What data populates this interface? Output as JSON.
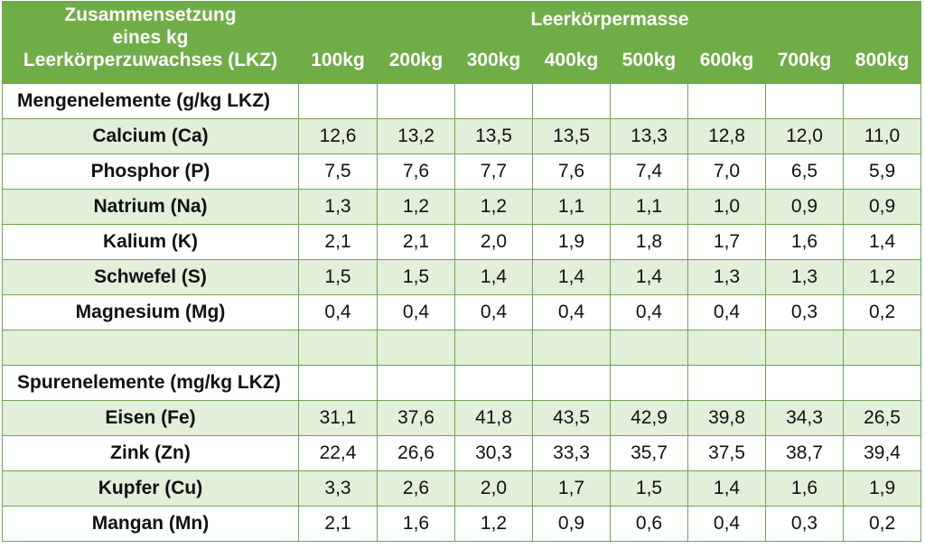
{
  "header": {
    "left_lines": [
      "Zusammensetzung",
      "eines kg",
      "Leerkörperzuwachses (LKZ)"
    ],
    "group": "Leerkörpermasse",
    "columns": [
      "100kg",
      "200kg",
      "300kg",
      "400kg",
      "500kg",
      "600kg",
      "700kg",
      "800kg"
    ]
  },
  "sections": [
    {
      "title": "Mengenelemente (g/kg LKZ)",
      "rows": [
        {
          "label": "Calcium (Ca)",
          "values": [
            "12,6",
            "13,2",
            "13,5",
            "13,5",
            "13,3",
            "12,8",
            "12,0",
            "11,0"
          ]
        },
        {
          "label": "Phosphor (P)",
          "values": [
            "7,5",
            "7,6",
            "7,7",
            "7,6",
            "7,4",
            "7,0",
            "6,5",
            "5,9"
          ]
        },
        {
          "label": "Natrium (Na)",
          "values": [
            "1,3",
            "1,2",
            "1,2",
            "1,1",
            "1,1",
            "1,0",
            "0,9",
            "0,9"
          ]
        },
        {
          "label": "Kalium (K)",
          "values": [
            "2,1",
            "2,1",
            "2,0",
            "1,9",
            "1,8",
            "1,7",
            "1,6",
            "1,4"
          ]
        },
        {
          "label": "Schwefel (S)",
          "values": [
            "1,5",
            "1,5",
            "1,4",
            "1,4",
            "1,4",
            "1,3",
            "1,3",
            "1,2"
          ]
        },
        {
          "label": "Magnesium (Mg)",
          "values": [
            "0,4",
            "0,4",
            "0,4",
            "0,4",
            "0,4",
            "0,4",
            "0,3",
            "0,2"
          ]
        }
      ]
    },
    {
      "title": "Spurenelemente (mg/kg LKZ)",
      "rows": [
        {
          "label": "Eisen (Fe)",
          "values": [
            "31,1",
            "37,6",
            "41,8",
            "43,5",
            "42,9",
            "39,8",
            "34,3",
            "26,5"
          ]
        },
        {
          "label": "Zink (Zn)",
          "values": [
            "22,4",
            "26,6",
            "30,3",
            "33,3",
            "35,7",
            "37,5",
            "38,7",
            "39,4"
          ]
        },
        {
          "label": "Kupfer (Cu)",
          "values": [
            "3,3",
            "2,6",
            "2,0",
            "1,7",
            "1,5",
            "1,4",
            "1,6",
            "1,9"
          ]
        },
        {
          "label": "Mangan (Mn)",
          "values": [
            "2,1",
            "1,6",
            "1,2",
            "0,9",
            "0,6",
            "0,4",
            "0,3",
            "0,2"
          ]
        }
      ]
    }
  ],
  "colors": {
    "header_bg": "#70ad47",
    "band_bg": "#e2efd9",
    "border": "#6aa84f"
  }
}
